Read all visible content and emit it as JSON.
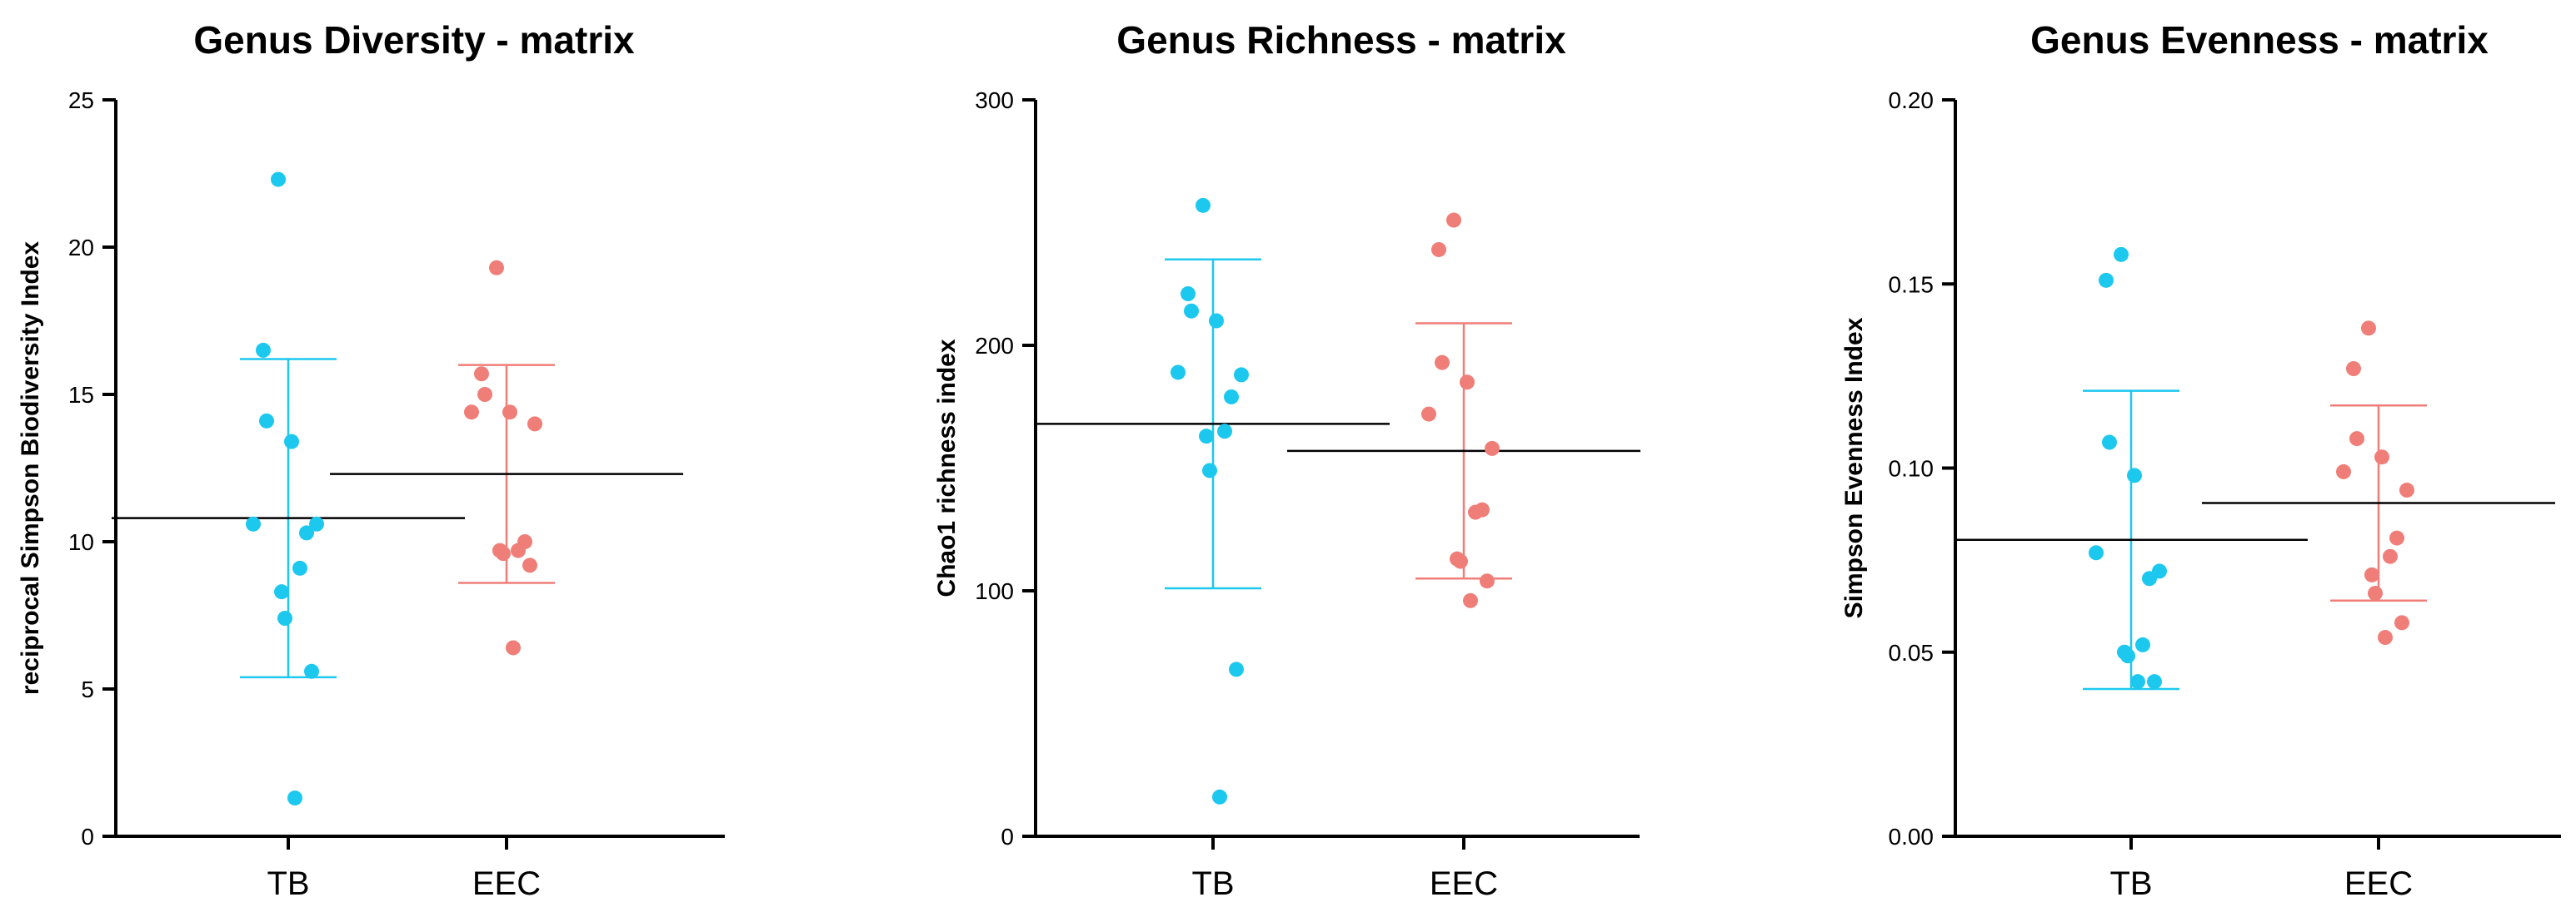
{
  "chart_data": [
    {
      "type": "scatter",
      "title": "Genus Diversity - matrix",
      "ylabel": "reciprocal Simpson Biodiversity Index",
      "xlabel": "",
      "categories": [
        "TB",
        "EEC"
      ],
      "ylim": [
        0,
        25
      ],
      "yticks": [
        0,
        5,
        10,
        15,
        20,
        25
      ],
      "ytick_labels": [
        "0",
        "5",
        "10",
        "15",
        "20",
        "25"
      ],
      "grid": false,
      "series": [
        {
          "category": "TB",
          "color": "#1CC8EE",
          "values": [
            22.3,
            16.5,
            14.1,
            13.4,
            10.6,
            10.6,
            10.3,
            9.1,
            8.3,
            7.4,
            5.6,
            1.3
          ],
          "mean": 10.8,
          "sd_lower": 5.4,
          "sd_upper": 16.2
        },
        {
          "category": "EEC",
          "color": "#F07E78",
          "values": [
            19.3,
            15.7,
            15.0,
            14.4,
            14.4,
            14.0,
            10.0,
            9.7,
            9.7,
            9.6,
            9.2,
            6.4
          ],
          "mean": 12.3,
          "sd_lower": 8.6,
          "sd_upper": 16.0
        }
      ]
    },
    {
      "type": "scatter",
      "title": "Genus Richness - matrix",
      "ylabel": "Chao1 richness index",
      "xlabel": "",
      "categories": [
        "TB",
        "EEC"
      ],
      "ylim": [
        0,
        300
      ],
      "yticks": [
        0,
        100,
        200,
        300
      ],
      "ytick_labels": [
        "0",
        "100",
        "200",
        "300"
      ],
      "grid": false,
      "series": [
        {
          "category": "TB",
          "color": "#1CC8EE",
          "values": [
            257,
            221,
            214,
            210,
            189,
            188,
            179,
            165,
            163,
            149,
            68,
            16
          ],
          "mean": 168,
          "sd_lower": 101,
          "sd_upper": 235
        },
        {
          "category": "EEC",
          "color": "#F07E78",
          "values": [
            251,
            239,
            193,
            185,
            172,
            158,
            133,
            132,
            113,
            112,
            104,
            96
          ],
          "mean": 157,
          "sd_lower": 105,
          "sd_upper": 209
        }
      ]
    },
    {
      "type": "scatter",
      "title": "Genus Evenness - matrix",
      "ylabel": "Simpson Evenness Index",
      "xlabel": "",
      "categories": [
        "TB",
        "EEC"
      ],
      "ylim": [
        0,
        0.2
      ],
      "yticks": [
        0,
        0.05,
        0.1,
        0.15,
        0.2
      ],
      "ytick_labels": [
        "0.00",
        "0.05",
        "0.10",
        "0.15",
        "0.20"
      ],
      "grid": false,
      "series": [
        {
          "category": "TB",
          "color": "#1CC8EE",
          "values": [
            0.158,
            0.151,
            0.107,
            0.098,
            0.077,
            0.072,
            0.07,
            0.052,
            0.05,
            0.049,
            0.042,
            0.042
          ],
          "mean": 0.0805,
          "sd_lower": 0.04,
          "sd_upper": 0.121
        },
        {
          "category": "EEC",
          "color": "#F07E78",
          "values": [
            0.138,
            0.127,
            0.108,
            0.103,
            0.099,
            0.094,
            0.081,
            0.076,
            0.071,
            0.066,
            0.058,
            0.054
          ],
          "mean": 0.0905,
          "sd_lower": 0.064,
          "sd_upper": 0.117
        }
      ]
    }
  ],
  "colors": {
    "TB": "#1CC8EE",
    "EEC": "#F07E78",
    "axis": "#000000",
    "mean_line": "#000000"
  }
}
